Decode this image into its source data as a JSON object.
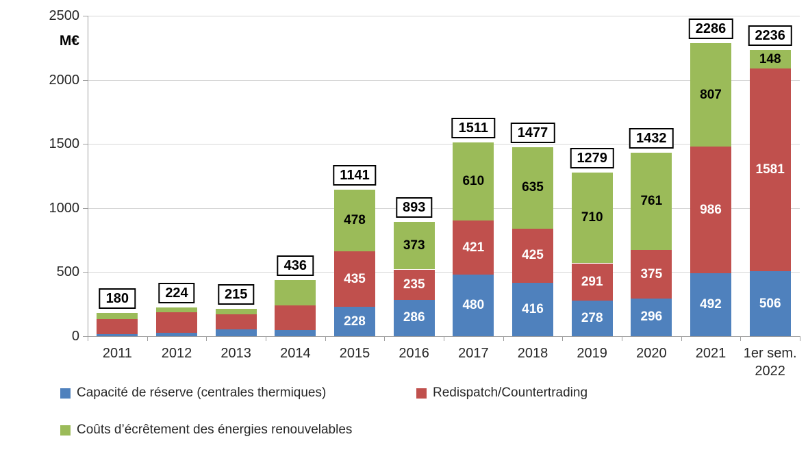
{
  "chart_data": {
    "type": "bar",
    "stacked": true,
    "unit_label": "M€",
    "ylim": [
      0,
      2500
    ],
    "yticks": [
      0,
      500,
      1000,
      1500,
      2000,
      2500
    ],
    "grid": true,
    "legend_position": "bottom-left two rows",
    "categories": [
      "2011",
      "2012",
      "2013",
      "2014",
      "2015",
      "2016",
      "2017",
      "2018",
      "2019",
      "2020",
      "2021",
      "1er sem.\n2022"
    ],
    "series": [
      {
        "name": "Capacité de réserve (centrales thermiques)",
        "color": "#4F81BD",
        "label_text_color": "#FFFFFF",
        "values": [
          15,
          25,
          52,
          46,
          228,
          286,
          480,
          416,
          278,
          296,
          492,
          506
        ]
      },
      {
        "name": "Redispatch/Countertrading",
        "color": "#C0504D",
        "label_text_color": "#FFFFFF",
        "values": [
          120,
          160,
          117,
          195,
          435,
          235,
          421,
          425,
          291,
          375,
          986,
          1581
        ]
      },
      {
        "name": "Coûts d’écrêtement des énergies renouvelables",
        "color": "#9BBB59",
        "label_text_color": "#000000",
        "values": [
          45,
          39,
          46,
          195,
          478,
          373,
          610,
          635,
          710,
          761,
          807,
          148
        ]
      }
    ],
    "segment_labels_visible": [
      false,
      false,
      false,
      false,
      true,
      true,
      true,
      true,
      true,
      true,
      true,
      true
    ],
    "totals": [
      180,
      224,
      215,
      436,
      1141,
      893,
      1511,
      1477,
      1279,
      1432,
      2286,
      2236
    ]
  }
}
